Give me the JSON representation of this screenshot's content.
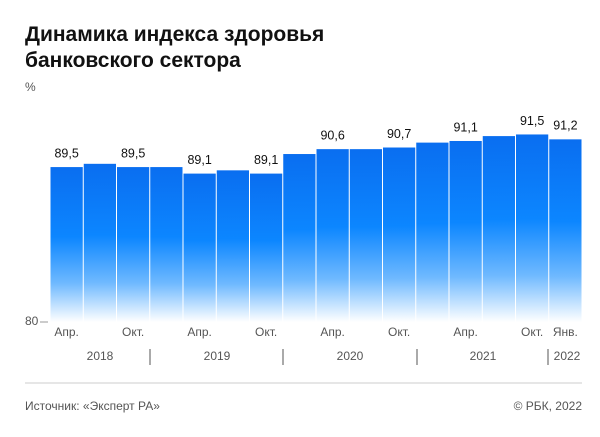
{
  "chart_data": {
    "type": "bar",
    "title": "Динамика индекса здоровья банковского сектора",
    "y_label": "%",
    "categories": [
      "Апр.",
      null,
      "Окт.",
      null,
      "Апр.",
      null,
      "Окт.",
      null,
      "Апр.",
      null,
      "Окт.",
      null,
      "Апр.",
      null,
      "Окт.",
      "Янв."
    ],
    "values": [
      89.5,
      89.7,
      89.5,
      89.5,
      89.1,
      89.3,
      89.1,
      90.3,
      90.6,
      90.6,
      90.7,
      91.0,
      91.1,
      91.4,
      91.5,
      91.2
    ],
    "value_labels": [
      "89,5",
      null,
      "89,5",
      null,
      "89,1",
      null,
      "89,1",
      null,
      "90,6",
      null,
      "90,7",
      null,
      "91,1",
      null,
      "91,5",
      "91,2"
    ],
    "years": [
      "2018",
      "2019",
      "2020",
      "2021",
      "2022"
    ],
    "color": "#0a74f5",
    "ylim": [
      80,
      93
    ],
    "yticks": [
      80
    ],
    "source": "Источник: «Эксперт РА»",
    "credit": "© РБК, 2022"
  }
}
